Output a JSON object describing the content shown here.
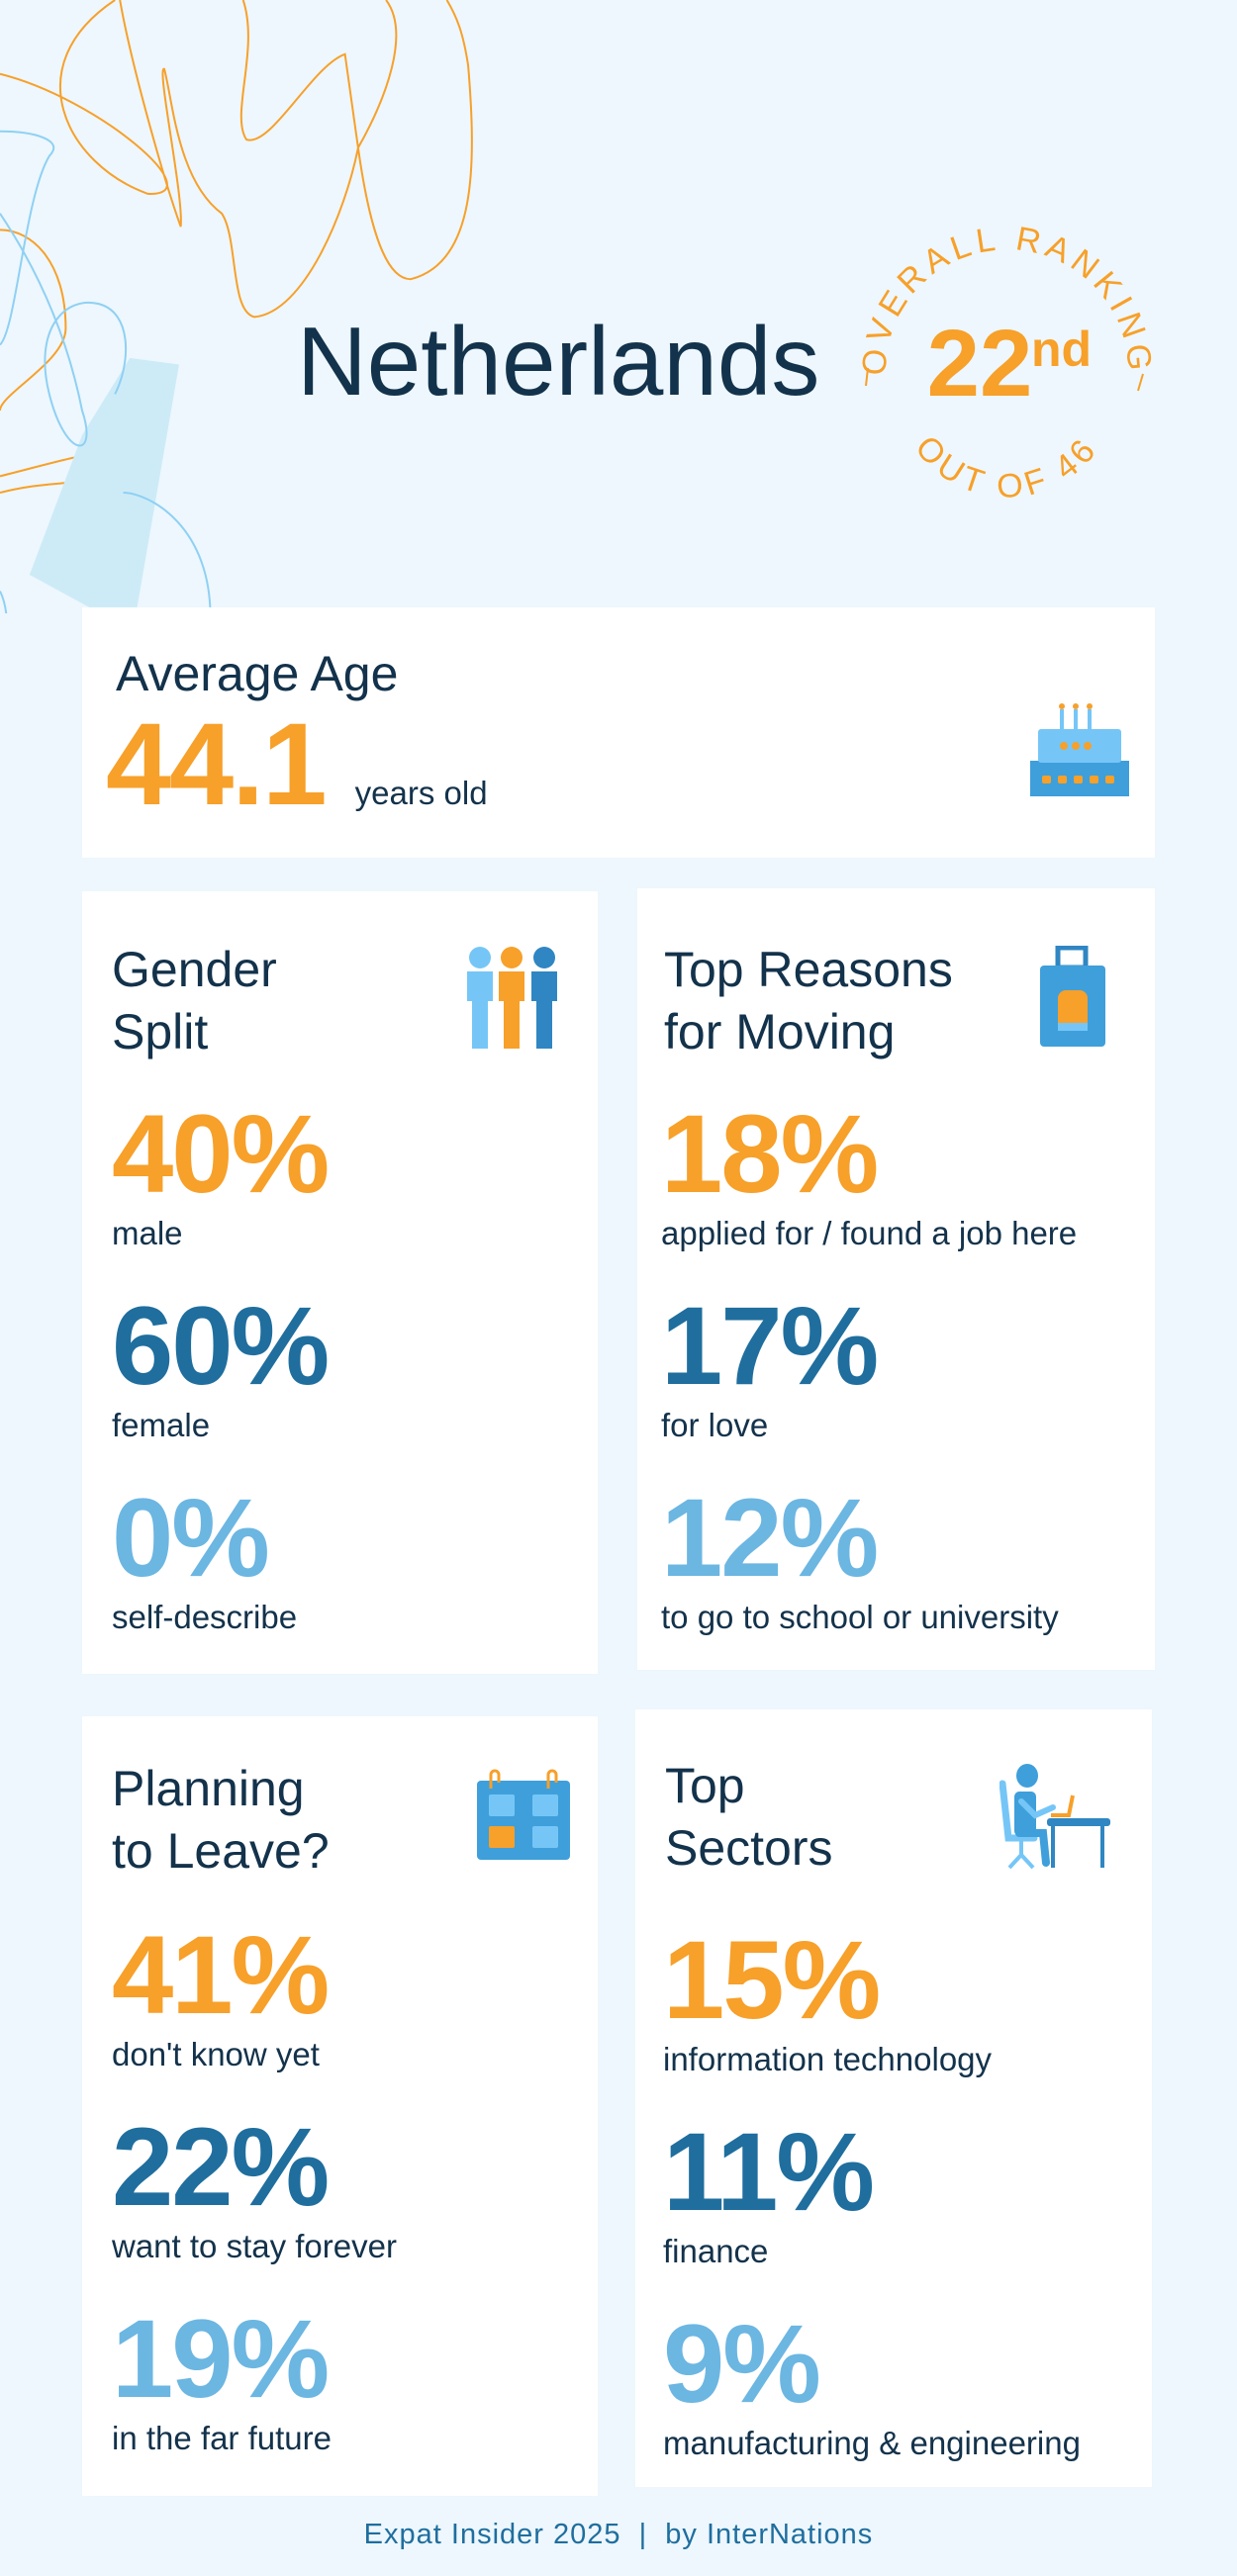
{
  "header": {
    "country": "Netherlands",
    "ranking_label": "OVERALL RANKING",
    "rank": "22",
    "rank_suffix": "nd",
    "out_of": "OUT OF 46"
  },
  "average_age": {
    "title": "Average Age",
    "value": "44.1",
    "unit": "years old",
    "icon": "birthday-cake-icon"
  },
  "gender_split": {
    "title_line1": "Gender",
    "title_line2": "Split",
    "icon": "people-icon",
    "stats": [
      {
        "value": "40%",
        "label": "male"
      },
      {
        "value": "60%",
        "label": "female"
      },
      {
        "value": "0%",
        "label": "self-describe"
      }
    ]
  },
  "reasons": {
    "title_line1": "Top Reasons",
    "title_line2": "for Moving",
    "icon": "suitcase-icon",
    "stats": [
      {
        "value": "18%",
        "label": "applied for / found a job here"
      },
      {
        "value": "17%",
        "label": "for love"
      },
      {
        "value": "12%",
        "label": "to go to school or university"
      }
    ]
  },
  "planning": {
    "title_line1": "Planning",
    "title_line2": "to Leave?",
    "icon": "calendar-icon",
    "stats": [
      {
        "value": "41%",
        "label": "don't know yet"
      },
      {
        "value": "22%",
        "label": "want to stay forever"
      },
      {
        "value": "19%",
        "label": "in the far future"
      }
    ]
  },
  "sectors": {
    "title_line1": "Top",
    "title_line2": "Sectors",
    "icon": "person-at-desk-icon",
    "stats": [
      {
        "value": "15%",
        "label": "information technology"
      },
      {
        "value": "11%",
        "label": "finance"
      },
      {
        "value": "9%",
        "label": "manufacturing & engineering"
      }
    ]
  },
  "footer": {
    "text": "Expat Insider 2025  |  by InterNations"
  },
  "colors": {
    "orange": "#f7a02a",
    "dark_blue": "#1f6e9e",
    "light_blue": "#6cb6e2",
    "navy": "#13324b",
    "background": "#edf7fd"
  }
}
